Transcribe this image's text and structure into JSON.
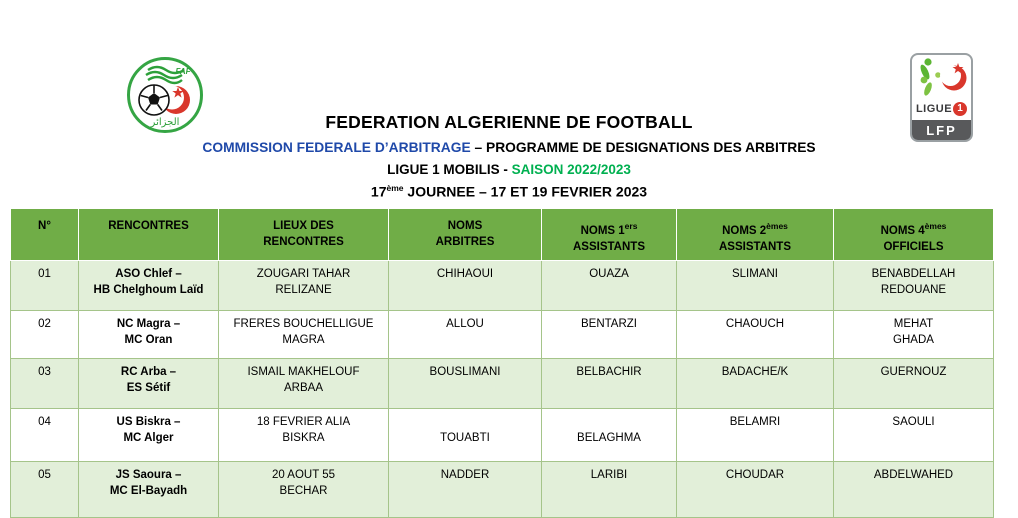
{
  "titles": {
    "line1": "FEDERATION ALGERIENNE DE FOOTBALL",
    "line2_blue": "COMMISSION FEDERALE D’ARBITRAGE",
    "line2_rest": " – PROGRAMME DE DESIGNATIONS DES ARBITRES",
    "line3_black": "LIGUE 1 MOBILIS - ",
    "line3_green": "SAISON 2022/2023",
    "line4_pre": "17",
    "line4_sup": "ème",
    "line4_post": " JOURNEE – 17 ET 19 FEVRIER 2023"
  },
  "logos": {
    "faf": {
      "acronym": "FAF",
      "arabic": "الجزائر"
    },
    "lfp": {
      "league_word": "LIGUE",
      "league_number": "1",
      "org": "LFP"
    }
  },
  "colors": {
    "header_green": "#70ad47",
    "row_light_green": "#e2efd9",
    "table_border": "#a5c48a",
    "title_blue": "#1f49a9",
    "title_green": "#00b050",
    "lfp_bar_gray": "#58595b",
    "crest_green": "#35a544",
    "crescent_red": "#d9372c"
  },
  "table": {
    "headers": [
      {
        "key": "num",
        "line1": "N°"
      },
      {
        "key": "rencontres",
        "line1": "RENCONTRES"
      },
      {
        "key": "lieux",
        "line1": "LIEUX DES",
        "line2": "RENCONTRES"
      },
      {
        "key": "arbitre",
        "line1": "NOMS",
        "line2": "ARBITRES"
      },
      {
        "key": "assistant1",
        "line1": "NOMS 1",
        "sup": "ers",
        "line2": "ASSISTANTS"
      },
      {
        "key": "assistant2",
        "line1": "NOMS 2",
        "sup": "èmes",
        "line2": "ASSISTANTS"
      },
      {
        "key": "officiel4",
        "line1": "NOMS 4",
        "sup": "èmes",
        "line2": "OFFICIELS"
      }
    ],
    "rows": [
      {
        "cells": [
          [
            "01"
          ],
          [
            "ASO Chlef –",
            "HB Chelghoum Laïd"
          ],
          [
            "ZOUGARI TAHAR",
            "RELIZANE"
          ],
          [
            "CHIHAOUI"
          ],
          [
            "OUAZA"
          ],
          [
            "SLIMANI"
          ],
          [
            "BENABDELLAH",
            "REDOUANE"
          ]
        ]
      },
      {
        "cells": [
          [
            "02"
          ],
          [
            "NC Magra –",
            "MC Oran"
          ],
          [
            "FRERES BOUCHELLIGUE",
            "MAGRA"
          ],
          [
            "ALLOU"
          ],
          [
            "BENTARZI"
          ],
          [
            "CHAOUCH"
          ],
          [
            "MEHAT",
            "GHADA"
          ]
        ]
      },
      {
        "cells": [
          [
            "03"
          ],
          [
            "RC Arba –",
            "ES Sétif"
          ],
          [
            "ISMAIL MAKHELOUF",
            "ARBAA"
          ],
          [
            "BOUSLIMANI"
          ],
          [
            "BELBACHIR"
          ],
          [
            "BADACHE/K"
          ],
          [
            "GUERNOUZ"
          ]
        ]
      },
      {
        "cells": [
          [
            "04"
          ],
          [
            "US Biskra –",
            "MC Alger"
          ],
          [
            "18 FEVRIER ALIA",
            "BISKRA"
          ],
          [
            "",
            "TOUABTI"
          ],
          [
            "",
            "BELAGHMA"
          ],
          [
            "BELAMRI"
          ],
          [
            "SAOULI"
          ]
        ]
      },
      {
        "cells": [
          [
            "05"
          ],
          [
            "JS Saoura –",
            "MC El-Bayadh"
          ],
          [
            "20 AOUT 55",
            "BECHAR"
          ],
          [
            "NADDER"
          ],
          [
            "LARIBI"
          ],
          [
            "CHOUDAR"
          ],
          [
            "ABDELWAHED"
          ]
        ]
      }
    ]
  }
}
